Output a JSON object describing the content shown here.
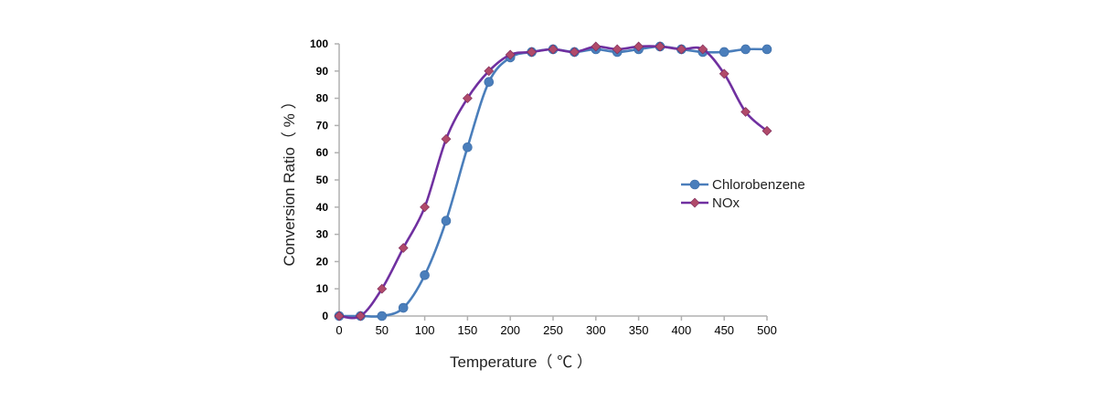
{
  "chart_data": {
    "type": "line",
    "title": "",
    "xlabel": "Temperature（ ℃ ）",
    "ylabel": "Conversion Ratio（ % ）",
    "xlim": [
      0,
      500
    ],
    "ylim": [
      0,
      100
    ],
    "xticks": [
      0,
      50,
      100,
      150,
      200,
      250,
      300,
      350,
      400,
      450,
      500
    ],
    "yticks": [
      0,
      10,
      20,
      30,
      40,
      50,
      60,
      70,
      80,
      90,
      100
    ],
    "grid": false,
    "legend_position": "right",
    "series": [
      {
        "name": "Chlorobenzene",
        "color": "#4a7ebb",
        "marker": "circle",
        "x": [
          0,
          25,
          50,
          75,
          100,
          125,
          150,
          175,
          200,
          225,
          250,
          275,
          300,
          325,
          350,
          375,
          400,
          425,
          450,
          475,
          500
        ],
        "y": [
          0,
          0,
          0,
          3,
          15,
          35,
          62,
          86,
          95,
          97,
          98,
          97,
          98,
          97,
          98,
          99,
          98,
          97,
          97,
          98,
          98
        ]
      },
      {
        "name": "NOx",
        "color": "#7030a0",
        "marker": "diamond",
        "marker_color": "#b04a6a",
        "x": [
          0,
          25,
          50,
          75,
          100,
          125,
          150,
          175,
          200,
          225,
          250,
          275,
          300,
          325,
          350,
          375,
          400,
          425,
          450,
          475,
          500
        ],
        "y": [
          0,
          0,
          10,
          25,
          40,
          65,
          80,
          90,
          96,
          97,
          98,
          97,
          99,
          98,
          99,
          99,
          98,
          98,
          89,
          75,
          68
        ]
      }
    ]
  }
}
